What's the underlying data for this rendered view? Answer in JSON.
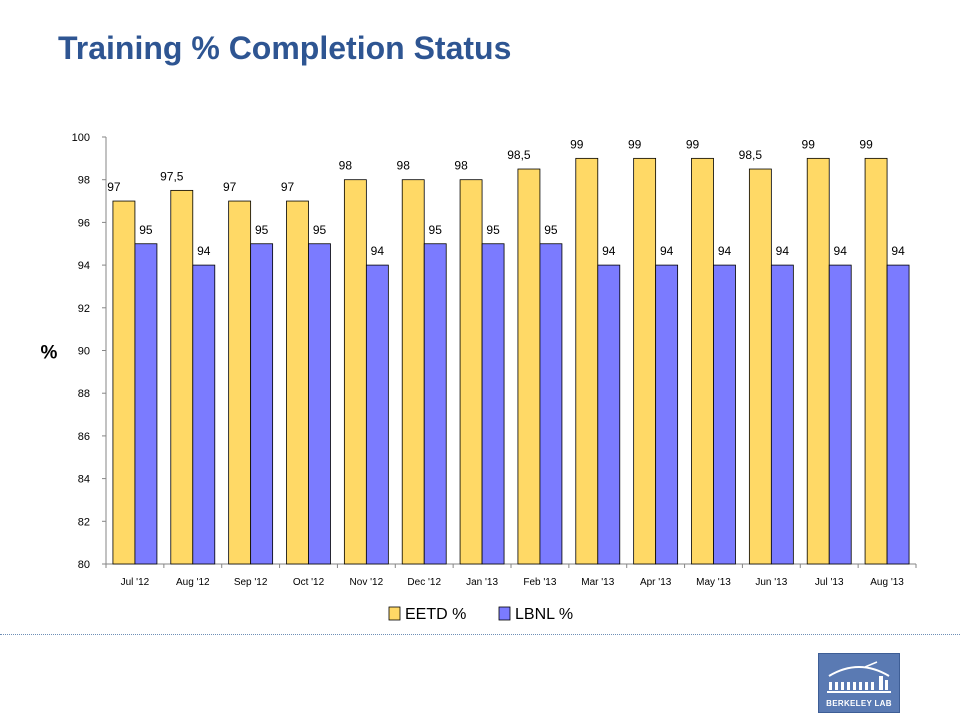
{
  "slide": {
    "title": "Training % Completion Status",
    "logo_text": "BERKELEY LAB"
  },
  "colors": {
    "eetd": "#ffd966",
    "lbnl": "#7b7bff",
    "title": "#2e5592"
  },
  "chart_data": {
    "type": "bar",
    "categories": [
      "Jul '12",
      "Aug '12",
      "Sep '12",
      "Oct '12",
      "Nov '12",
      "Dec '12",
      "Jan '13",
      "Feb '13",
      "Mar '13",
      "Apr '13",
      "May '13",
      "Jun '13",
      "Jul '13",
      "Aug '13"
    ],
    "series": [
      {
        "name": "EETD %",
        "color": "#ffd966",
        "values": [
          97,
          97.5,
          97,
          97,
          98,
          98,
          98,
          98.5,
          99,
          99,
          99,
          98.5,
          99,
          99
        ],
        "labels": [
          "97",
          "97,5",
          "97",
          "97",
          "98",
          "98",
          "98",
          "98,5",
          "99",
          "99",
          "99",
          "98,5",
          "99",
          "99"
        ]
      },
      {
        "name": "LBNL %",
        "color": "#7b7bff",
        "values": [
          95,
          94,
          95,
          95,
          94,
          95,
          95,
          95,
          94,
          94,
          94,
          94,
          94,
          94
        ],
        "labels": [
          "95",
          "94",
          "95",
          "95",
          "94",
          "95",
          "95",
          "95",
          "94",
          "94",
          "94",
          "94",
          "94",
          "94"
        ]
      }
    ],
    "ylabel": "%",
    "ylim": [
      80,
      100
    ],
    "yticks": [
      80,
      82,
      84,
      86,
      88,
      90,
      92,
      94,
      96,
      98,
      100
    ],
    "grid": false,
    "legend": "bottom"
  }
}
